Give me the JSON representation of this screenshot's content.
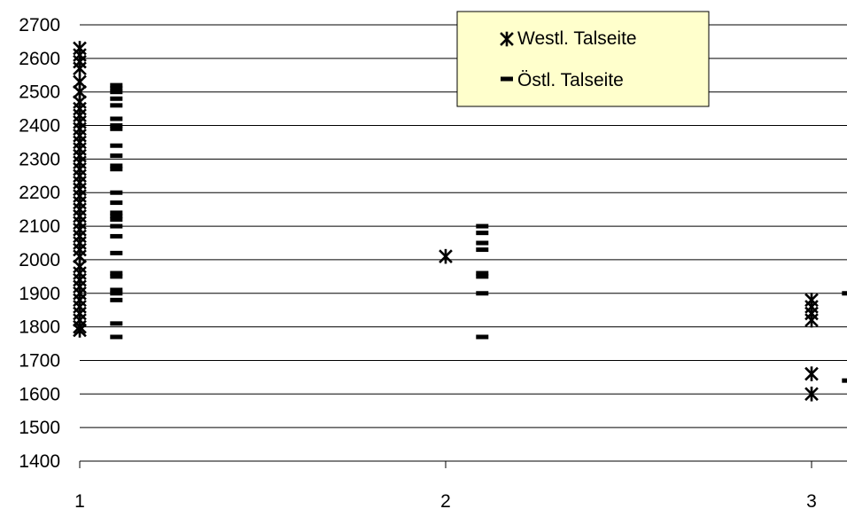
{
  "chart_data": {
    "type": "scatter",
    "title": "",
    "xlabel": "",
    "ylabel": "",
    "xlim": [
      1,
      3.1
    ],
    "ylim": [
      1400,
      2700
    ],
    "x_ticks": [
      "1",
      "2",
      "3"
    ],
    "y_ticks": [
      "1400",
      "1500",
      "1600",
      "1700",
      "1800",
      "1900",
      "2000",
      "2100",
      "2200",
      "2300",
      "2400",
      "2500",
      "2600",
      "2700"
    ],
    "grid": "horizontal",
    "legend_position": "top-right",
    "series": [
      {
        "name": "Westl. Talseite",
        "marker": "asterisk",
        "color": "#000000",
        "points": [
          [
            1,
            1790
          ],
          [
            1,
            1800
          ],
          [
            1,
            1820
          ],
          [
            1,
            1840
          ],
          [
            1,
            1860
          ],
          [
            1,
            1880
          ],
          [
            1,
            1900
          ],
          [
            1,
            1920
          ],
          [
            1,
            1940
          ],
          [
            1,
            1960
          ],
          [
            1,
            1980
          ],
          [
            1,
            2010
          ],
          [
            1,
            2030
          ],
          [
            1,
            2050
          ],
          [
            1,
            2070
          ],
          [
            1,
            2090
          ],
          [
            1,
            2110
          ],
          [
            1,
            2130
          ],
          [
            1,
            2150
          ],
          [
            1,
            2170
          ],
          [
            1,
            2190
          ],
          [
            1,
            2210
          ],
          [
            1,
            2230
          ],
          [
            1,
            2250
          ],
          [
            1,
            2270
          ],
          [
            1,
            2290
          ],
          [
            1,
            2310
          ],
          [
            1,
            2330
          ],
          [
            1,
            2350
          ],
          [
            1,
            2370
          ],
          [
            1,
            2390
          ],
          [
            1,
            2410
          ],
          [
            1,
            2430
          ],
          [
            1,
            2450
          ],
          [
            1,
            2470
          ],
          [
            1,
            2500
          ],
          [
            1,
            2530
          ],
          [
            1,
            2570
          ],
          [
            1,
            2590
          ],
          [
            1,
            2610
          ],
          [
            1,
            2630
          ],
          [
            2,
            2010
          ],
          [
            3,
            1880
          ],
          [
            3,
            1860
          ],
          [
            3,
            1840
          ],
          [
            3,
            1820
          ],
          [
            3,
            1660
          ],
          [
            3,
            1600
          ]
        ]
      },
      {
        "name": "Östl. Talseite",
        "marker": "dash",
        "color": "#000000",
        "points": [
          [
            1.1,
            1770
          ],
          [
            1.1,
            1810
          ],
          [
            1.1,
            1880
          ],
          [
            1.1,
            1900
          ],
          [
            1.1,
            1910
          ],
          [
            1.1,
            1950
          ],
          [
            1.1,
            1960
          ],
          [
            1.1,
            2020
          ],
          [
            1.1,
            2070
          ],
          [
            1.1,
            2100
          ],
          [
            1.1,
            2120
          ],
          [
            1.1,
            2130
          ],
          [
            1.1,
            2140
          ],
          [
            1.1,
            2170
          ],
          [
            1.1,
            2200
          ],
          [
            1.1,
            2270
          ],
          [
            1.1,
            2280
          ],
          [
            1.1,
            2310
          ],
          [
            1.1,
            2340
          ],
          [
            1.1,
            2390
          ],
          [
            1.1,
            2400
          ],
          [
            1.1,
            2420
          ],
          [
            1.1,
            2460
          ],
          [
            1.1,
            2480
          ],
          [
            1.1,
            2500
          ],
          [
            1.1,
            2510
          ],
          [
            1.1,
            2520
          ],
          [
            2.1,
            1770
          ],
          [
            2.1,
            1900
          ],
          [
            2.1,
            1950
          ],
          [
            2.1,
            1960
          ],
          [
            2.1,
            2030
          ],
          [
            2.1,
            2050
          ],
          [
            2.1,
            2080
          ],
          [
            2.1,
            2100
          ],
          [
            3.1,
            1900
          ],
          [
            3.1,
            1640
          ]
        ]
      }
    ]
  }
}
